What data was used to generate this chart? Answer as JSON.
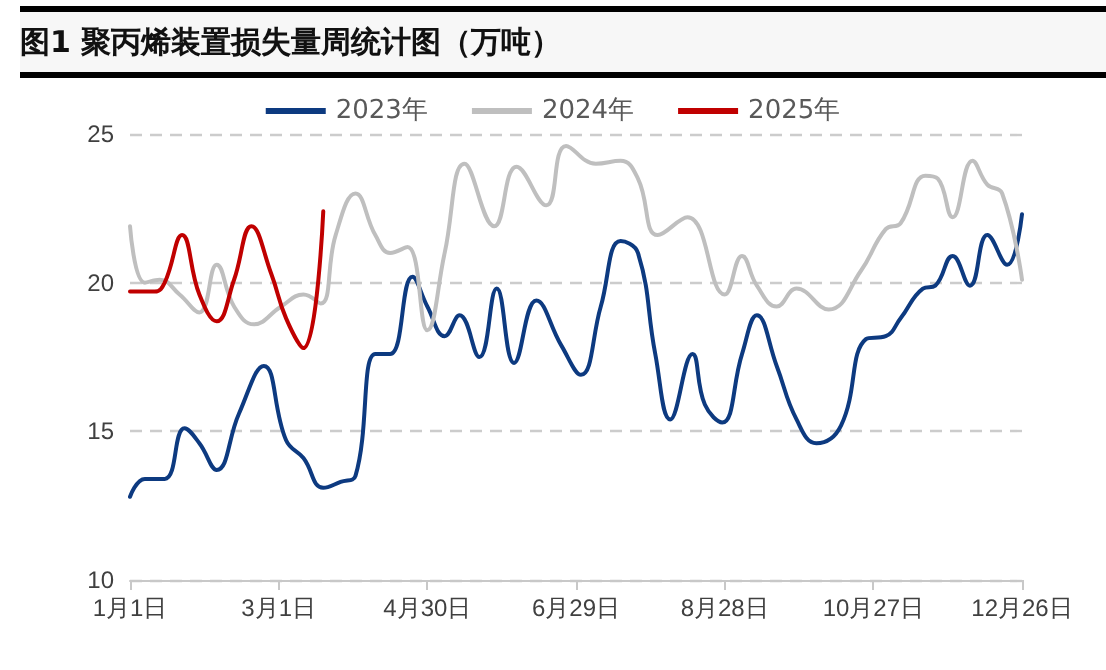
{
  "chart_data": {
    "type": "line",
    "title": "图1 聚丙烯装置损失量周统计图（万吨）",
    "xlim": [
      "--01-01",
      "--12-26"
    ],
    "xticks": [
      {
        "value": "--01-01",
        "label": "1月1日"
      },
      {
        "value": "--03-01",
        "label": "3月1日"
      },
      {
        "value": "--04-30",
        "label": "4月30日"
      },
      {
        "value": "--06-29",
        "label": "6月29日"
      },
      {
        "value": "--08-28",
        "label": "8月28日"
      },
      {
        "value": "--10-27",
        "label": "10月27日"
      },
      {
        "value": "--12-26",
        "label": "12月26日"
      }
    ],
    "ylim": [
      10,
      25
    ],
    "yticks": [
      10,
      15,
      20,
      25
    ],
    "grid": "y",
    "legend": "top",
    "marker": "none",
    "line_style": "solid",
    "series": [
      {
        "name": "2023年",
        "color": "#0d3a80",
        "x": [
          "--01-01",
          "--01-07",
          "--01-15",
          "--01-23",
          "--01-29",
          "--02-05",
          "--02-14",
          "--02-24",
          "--03-04",
          "--03-11",
          "--03-19",
          "--03-26",
          "--04-01",
          "--04-09",
          "--04-15",
          "--04-24",
          "--04-30",
          "--05-07",
          "--05-13",
          "--05-21",
          "--05-28",
          "--06-04",
          "--06-13",
          "--06-23",
          "--07-01",
          "--07-09",
          "--07-17",
          "--07-24",
          "--07-31",
          "--08-06",
          "--08-15",
          "--08-20",
          "--08-27",
          "--09-04",
          "--09-10",
          "--09-18",
          "--09-26",
          "--10-04",
          "--10-14",
          "--10-24",
          "--11-01",
          "--11-07",
          "--11-16",
          "--11-21",
          "--11-28",
          "--12-05",
          "--12-12",
          "--12-20",
          "--12-26"
        ],
        "values": [
          12.8,
          13.4,
          13.4,
          15.1,
          14.6,
          13.7,
          15.6,
          17.2,
          14.7,
          14.1,
          13.1,
          13.3,
          13.5,
          17.6,
          17.6,
          20.2,
          19.2,
          18.2,
          18.9,
          17.5,
          19.8,
          17.3,
          19.4,
          17.9,
          16.9,
          19.2,
          21.4,
          21.0,
          17.6,
          15.4,
          17.6,
          15.9,
          15.3,
          17.6,
          18.9,
          17.2,
          15.4,
          14.6,
          15.2,
          18.1,
          18.2,
          18.8,
          19.8,
          19.9,
          20.9,
          19.9,
          21.6,
          20.6,
          22.3
        ]
      },
      {
        "name": "2024年",
        "color": "#bfbfbf",
        "x": [
          "--01-01",
          "--01-07",
          "--01-13",
          "--01-21",
          "--01-29",
          "--02-05",
          "--02-12",
          "--02-20",
          "--03-02",
          "--03-11",
          "--03-18",
          "--03-24",
          "--04-01",
          "--04-09",
          "--04-15",
          "--04-22",
          "--04-30",
          "--05-07",
          "--05-15",
          "--05-27",
          "--06-05",
          "--06-17",
          "--06-25",
          "--07-07",
          "--07-17",
          "--07-24",
          "--08-01",
          "--08-13",
          "--08-28",
          "--09-04",
          "--09-10",
          "--09-18",
          "--09-26",
          "--10-09",
          "--10-22",
          "--11-01",
          "--11-07",
          "--11-17",
          "--11-22",
          "--11-28",
          "--12-06",
          "--12-12",
          "--12-18",
          "--12-26"
        ],
        "values": [
          21.9,
          20.0,
          20.1,
          19.6,
          19.0,
          20.6,
          19.2,
          18.6,
          19.2,
          19.6,
          19.3,
          21.6,
          23.0,
          21.6,
          21.0,
          21.2,
          18.4,
          21.0,
          24.0,
          21.9,
          23.9,
          22.6,
          24.6,
          24.0,
          24.1,
          23.5,
          21.6,
          22.2,
          19.6,
          20.9,
          19.9,
          19.2,
          19.8,
          19.1,
          20.4,
          21.8,
          22.0,
          23.6,
          23.5,
          22.2,
          24.1,
          23.3,
          23.0,
          20.1
        ]
      },
      {
        "name": "2025年",
        "color": "#c00000",
        "x": [
          "--01-01",
          "--01-11",
          "--01-15",
          "--01-22",
          "--01-29",
          "--02-05",
          "--02-12",
          "--02-19",
          "--02-27",
          "--03-04",
          "--03-11",
          "--03-19"
        ],
        "values": [
          19.7,
          19.7,
          20.0,
          21.6,
          19.6,
          18.7,
          20.1,
          21.9,
          20.3,
          18.8,
          17.8,
          22.4
        ]
      }
    ]
  }
}
